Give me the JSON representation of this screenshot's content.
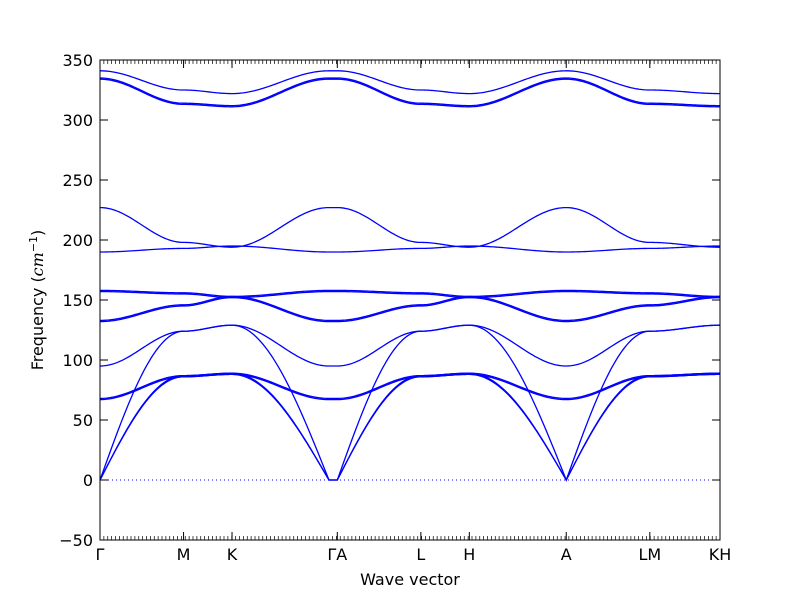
{
  "chart_data": {
    "type": "line",
    "title": "",
    "xlabel": "Wave vector",
    "ylabel": "Frequency (cm⁻¹)",
    "ylabel_parts": {
      "text": "Frequency (",
      "unit": "cm",
      "exponent": "−1",
      "close": ")"
    },
    "ylim": [
      -50,
      350
    ],
    "yticks": [
      -50,
      0,
      50,
      100,
      150,
      200,
      250,
      300,
      350
    ],
    "xlim": [
      0,
      7.42
    ],
    "grid": false,
    "legend": "none",
    "color": "#0000ff",
    "zero_line": {
      "y": 0,
      "style": "dotted"
    },
    "high_symmetry_points": [
      {
        "label": "Γ",
        "x": 0.0
      },
      {
        "label": "M",
        "x": 1.0
      },
      {
        "label": "K",
        "x": 1.58
      },
      {
        "label": "ΓA",
        "x": 2.84
      },
      {
        "label": "L",
        "x": 3.84
      },
      {
        "label": "H",
        "x": 4.42
      },
      {
        "label": "A",
        "x": 5.58
      },
      {
        "label": "LM",
        "x": 6.58
      },
      {
        "label": "KH",
        "x": 7.42
      }
    ],
    "segment_breaks": [
      0.0,
      1.0,
      1.58,
      2.74,
      2.84,
      3.84,
      4.42,
      5.58,
      6.58,
      7.42
    ],
    "series": [
      {
        "values": [
          0,
          86,
          88,
          0,
          0,
          86,
          88,
          0,
          86,
          88
        ]
      },
      {
        "values": [
          0,
          87,
          89,
          0,
          0,
          87,
          89,
          0,
          87,
          89
        ]
      },
      {
        "values": [
          0,
          124,
          129,
          0,
          0,
          124,
          129,
          0,
          124,
          129
        ]
      },
      {
        "values": [
          67,
          86,
          88,
          67,
          67,
          86,
          88,
          67,
          86,
          88
        ]
      },
      {
        "values": [
          68,
          87,
          89,
          68,
          68,
          87,
          89,
          68,
          87,
          89
        ]
      },
      {
        "values": [
          95,
          124,
          129,
          95,
          95,
          124,
          129,
          95,
          124,
          129
        ]
      },
      {
        "values": [
          132,
          145,
          152,
          132,
          132,
          145,
          152,
          132,
          145,
          152
        ]
      },
      {
        "values": [
          133,
          146,
          153,
          133,
          133,
          146,
          153,
          133,
          146,
          153
        ]
      },
      {
        "values": [
          157,
          155,
          152,
          157,
          157,
          155,
          152,
          157,
          155,
          152
        ]
      },
      {
        "values": [
          158,
          156,
          153,
          158,
          158,
          156,
          153,
          158,
          156,
          153
        ]
      },
      {
        "values": [
          190,
          193,
          195,
          190,
          190,
          193,
          195,
          190,
          193,
          195
        ]
      },
      {
        "values": [
          227,
          198,
          194,
          227,
          227,
          198,
          194,
          227,
          198,
          194
        ]
      },
      {
        "values": [
          334,
          313,
          311,
          334,
          334,
          313,
          311,
          334,
          313,
          311
        ]
      },
      {
        "values": [
          335,
          314,
          312,
          335,
          335,
          314,
          312,
          335,
          314,
          312
        ]
      },
      {
        "values": [
          341,
          325,
          322,
          341,
          341,
          325,
          322,
          341,
          325,
          322
        ]
      }
    ]
  }
}
